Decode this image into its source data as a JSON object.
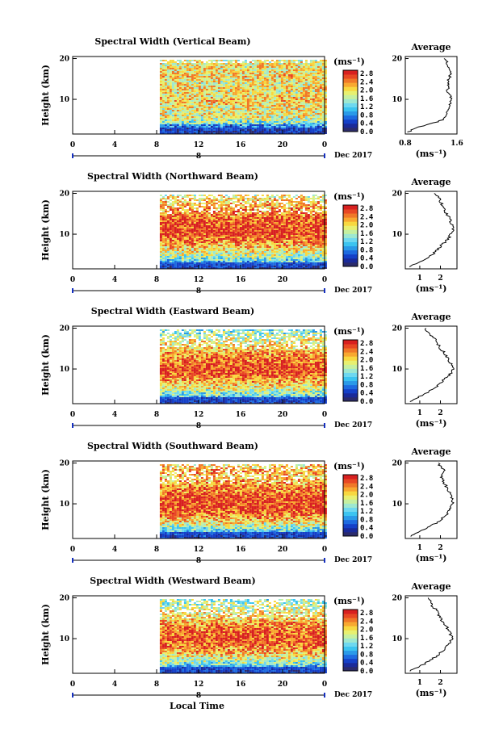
{
  "figure": {
    "xlabel": "Local Time",
    "date_label": "Dec 2017",
    "day_label": "8",
    "unit_label": "(ms⁻¹)",
    "avg_title": "Average"
  },
  "colorbar": {
    "ticks": [
      "2.8",
      "2.4",
      "2.0",
      "1.6",
      "1.2",
      "0.8",
      "0.4",
      "0.0"
    ],
    "colors": [
      "#2b2b6b",
      "#1a2a9a",
      "#1540c8",
      "#1e6be0",
      "#2a9ae8",
      "#3cc4f0",
      "#6ed8f0",
      "#9ee8d0",
      "#c6f0a0",
      "#e8f070",
      "#f8d840",
      "#f8a830",
      "#f07828",
      "#e84824",
      "#d82020"
    ]
  },
  "chart_data": [
    {
      "type": "heatmap",
      "title": "Spectral Width (Vertical Beam)",
      "ylabel": "Height (km)",
      "xlabel": "",
      "x_ticks": [
        "0",
        "4",
        "8",
        "12",
        "16",
        "20",
        "0"
      ],
      "y_ticks": [
        "20",
        "10"
      ],
      "xlim": [
        0,
        24
      ],
      "ylim": [
        1.5,
        20.5
      ],
      "data_start_hour": 8.3,
      "value_range": [
        0.0,
        2.8
      ],
      "avg_profile": {
        "title": "Average",
        "xlabel": "(ms⁻¹)",
        "x_ticks": [
          "0.8",
          "1.6"
        ],
        "x_tick_values": [
          0.8,
          1.6
        ],
        "xlim": [
          0.8,
          1.6
        ],
        "height_km": [
          2,
          3,
          4,
          5,
          6,
          7,
          8,
          9,
          10,
          11,
          12,
          13,
          14,
          15,
          16,
          17,
          18,
          19,
          20
        ],
        "width": [
          0.85,
          0.95,
          1.2,
          1.38,
          1.45,
          1.45,
          1.46,
          1.5,
          1.52,
          1.5,
          1.45,
          1.49,
          1.45,
          1.48,
          1.5,
          1.48,
          1.47,
          1.45,
          1.4
        ]
      }
    },
    {
      "type": "heatmap",
      "title": "Spectral Width (Northward Beam)",
      "ylabel": "Height (km)",
      "xlabel": "",
      "x_ticks": [
        "0",
        "4",
        "8",
        "12",
        "16",
        "20",
        "0"
      ],
      "y_ticks": [
        "20",
        "10"
      ],
      "xlim": [
        0,
        24
      ],
      "ylim": [
        1.5,
        20.5
      ],
      "data_start_hour": 8.3,
      "value_range": [
        0.0,
        2.8
      ],
      "avg_profile": {
        "title": "Average",
        "xlabel": "(ms⁻¹)",
        "x_ticks": [
          "1",
          "2"
        ],
        "x_tick_values": [
          1.0,
          2.0
        ],
        "xlim": [
          0.3,
          2.8
        ],
        "height_km": [
          2,
          3,
          4,
          5,
          6,
          7,
          8,
          9,
          10,
          11,
          12,
          13,
          14,
          15,
          16,
          17,
          18,
          19,
          20
        ],
        "width": [
          0.5,
          0.9,
          1.3,
          1.6,
          1.8,
          2.0,
          2.2,
          2.4,
          2.5,
          2.6,
          2.55,
          2.5,
          2.45,
          2.3,
          2.2,
          2.1,
          2.0,
          1.9,
          1.7
        ]
      }
    },
    {
      "type": "heatmap",
      "title": "Spectral Width (Eastward Beam)",
      "ylabel": "Height (km)",
      "xlabel": "",
      "x_ticks": [
        "0",
        "4",
        "8",
        "12",
        "16",
        "20",
        "0"
      ],
      "y_ticks": [
        "20",
        "10"
      ],
      "xlim": [
        0,
        24
      ],
      "ylim": [
        1.5,
        20.5
      ],
      "data_start_hour": 8.3,
      "value_range": [
        0.0,
        2.8
      ],
      "avg_profile": {
        "title": "Average",
        "xlabel": "(ms⁻¹)",
        "x_ticks": [
          "1",
          "2"
        ],
        "x_tick_values": [
          1.0,
          2.0
        ],
        "xlim": [
          0.3,
          2.8
        ],
        "height_km": [
          2,
          3,
          4,
          5,
          6,
          7,
          8,
          9,
          10,
          11,
          12,
          13,
          14,
          15,
          16,
          17,
          18,
          19,
          20
        ],
        "width": [
          0.5,
          0.9,
          1.3,
          1.6,
          1.9,
          2.1,
          2.3,
          2.5,
          2.6,
          2.55,
          2.4,
          2.3,
          2.2,
          2.0,
          1.9,
          1.8,
          1.6,
          1.4,
          1.3
        ]
      }
    },
    {
      "type": "heatmap",
      "title": "Spectral Width (Southward Beam)",
      "ylabel": "Height (km)",
      "xlabel": "",
      "x_ticks": [
        "0",
        "4",
        "8",
        "12",
        "16",
        "20",
        "0"
      ],
      "y_ticks": [
        "20",
        "10"
      ],
      "xlim": [
        0,
        24
      ],
      "ylim": [
        1.5,
        20.5
      ],
      "data_start_hour": 8.3,
      "value_range": [
        0.0,
        2.8
      ],
      "avg_profile": {
        "title": "Average",
        "xlabel": "(ms⁻¹)",
        "x_ticks": [
          "1",
          "2"
        ],
        "x_tick_values": [
          1.0,
          2.0
        ],
        "xlim": [
          0.3,
          2.8
        ],
        "height_km": [
          2,
          3,
          4,
          5,
          6,
          7,
          8,
          9,
          10,
          11,
          12,
          13,
          14,
          15,
          16,
          17,
          18,
          19,
          20
        ],
        "width": [
          0.5,
          0.9,
          1.3,
          1.7,
          2.0,
          2.2,
          2.4,
          2.5,
          2.6,
          2.55,
          2.5,
          2.4,
          2.3,
          2.2,
          2.1,
          2.0,
          2.2,
          2.0,
          1.9
        ]
      }
    },
    {
      "type": "heatmap",
      "title": "Spectral Width (Westward Beam)",
      "ylabel": "Height (km)",
      "xlabel": "",
      "x_ticks": [
        "0",
        "4",
        "8",
        "12",
        "16",
        "20",
        "0"
      ],
      "y_ticks": [
        "20",
        "10"
      ],
      "xlim": [
        0,
        24
      ],
      "ylim": [
        1.5,
        20.5
      ],
      "data_start_hour": 8.3,
      "value_range": [
        0.0,
        2.8
      ],
      "avg_profile": {
        "title": "Average",
        "xlabel": "(ms⁻¹)",
        "x_ticks": [
          "1",
          "2"
        ],
        "x_tick_values": [
          1.0,
          2.0
        ],
        "xlim": [
          0.3,
          2.8
        ],
        "height_km": [
          2,
          3,
          4,
          5,
          6,
          7,
          8,
          9,
          10,
          11,
          12,
          13,
          14,
          15,
          16,
          17,
          18,
          19,
          20
        ],
        "width": [
          0.5,
          0.9,
          1.3,
          1.6,
          1.9,
          2.1,
          2.3,
          2.45,
          2.55,
          2.5,
          2.4,
          2.3,
          2.15,
          2.0,
          1.9,
          1.8,
          1.6,
          1.5,
          1.4
        ]
      }
    }
  ]
}
